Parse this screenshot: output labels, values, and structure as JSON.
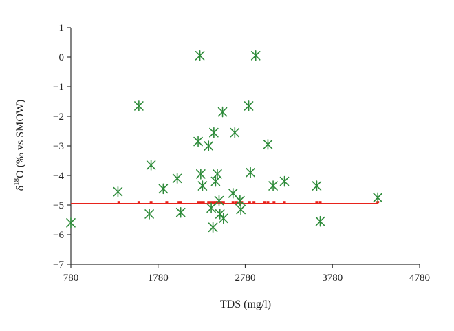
{
  "chart_data": {
    "type": "scatter",
    "title": "",
    "xlabel": "TDS (mg/l)",
    "ylabel": {
      "prefix": "δ",
      "superscript": "18",
      "suffix": "O (‰ vs SMOW)"
    },
    "xlim": [
      780,
      4780
    ],
    "ylim": [
      -7,
      1
    ],
    "xticks": [
      780,
      1780,
      2780,
      3780,
      4780
    ],
    "yticks": [
      1,
      0,
      -1,
      -2,
      -3,
      -4,
      -5,
      -6,
      -7
    ],
    "grid": false,
    "legend": "none",
    "series": [
      {
        "marker": "asterisk",
        "color": "#2e8b3a",
        "points": [
          [
            780,
            -5.6
          ],
          [
            1320,
            -4.55
          ],
          [
            1560,
            -1.65
          ],
          [
            1680,
            -5.3
          ],
          [
            1700,
            -3.65
          ],
          [
            1840,
            -4.45
          ],
          [
            2000,
            -4.1
          ],
          [
            2040,
            -5.25
          ],
          [
            2240,
            -2.85
          ],
          [
            2260,
            0.05
          ],
          [
            2270,
            -3.95
          ],
          [
            2290,
            -4.35
          ],
          [
            2360,
            -3.0
          ],
          [
            2390,
            -5.1
          ],
          [
            2420,
            -2.55
          ],
          [
            2410,
            -5.75
          ],
          [
            2440,
            -4.2
          ],
          [
            2460,
            -3.95
          ],
          [
            2480,
            -4.85
          ],
          [
            2490,
            -5.3
          ],
          [
            2520,
            -1.85
          ],
          [
            2530,
            -5.45
          ],
          [
            2640,
            -4.6
          ],
          [
            2660,
            -2.55
          ],
          [
            2720,
            -4.85
          ],
          [
            2730,
            -5.15
          ],
          [
            2820,
            -1.65
          ],
          [
            2840,
            -3.9
          ],
          [
            2900,
            0.05
          ],
          [
            3040,
            -2.95
          ],
          [
            3100,
            -4.35
          ],
          [
            3230,
            -4.2
          ],
          [
            3600,
            -4.35
          ],
          [
            3640,
            -5.55
          ],
          [
            4300,
            -4.75
          ]
        ]
      },
      {
        "marker": "dash",
        "color": "#e8231c",
        "points": [
          [
            1330,
            -4.9
          ],
          [
            1560,
            -4.9
          ],
          [
            1700,
            -4.9
          ],
          [
            1880,
            -4.9
          ],
          [
            2020,
            -4.9
          ],
          [
            2040,
            -4.9
          ],
          [
            2240,
            -4.9
          ],
          [
            2270,
            -4.9
          ],
          [
            2300,
            -4.9
          ],
          [
            2360,
            -4.9
          ],
          [
            2390,
            -4.9
          ],
          [
            2420,
            -4.9
          ],
          [
            2440,
            -4.9
          ],
          [
            2460,
            -4.9
          ],
          [
            2500,
            -4.9
          ],
          [
            2530,
            -4.9
          ],
          [
            2640,
            -4.9
          ],
          [
            2680,
            -4.9
          ],
          [
            2720,
            -4.9
          ],
          [
            2740,
            -4.9
          ],
          [
            2830,
            -4.9
          ],
          [
            2880,
            -4.9
          ],
          [
            3000,
            -4.9
          ],
          [
            3040,
            -4.9
          ],
          [
            3110,
            -4.9
          ],
          [
            3230,
            -4.9
          ],
          [
            3600,
            -4.9
          ],
          [
            3640,
            -4.9
          ],
          [
            4300,
            -4.9
          ]
        ]
      }
    ],
    "reference_line": {
      "y": -4.95,
      "x_range": [
        780,
        4300
      ],
      "color": "#e8231c"
    }
  }
}
